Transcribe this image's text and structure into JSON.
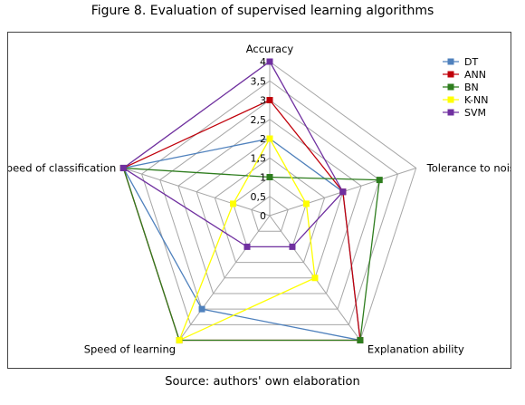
{
  "title": "Figure 8. Evaluation of supervised learning algorithms",
  "source": "Source: authors' own elaboration",
  "chart_data": {
    "type": "radar",
    "axes": [
      "Accuracy",
      "Tolerance to noise",
      "Explanation ability",
      "Speed of learning",
      "Speed of classification"
    ],
    "tick_labels": [
      "0",
      "0,5",
      "1",
      "1,5",
      "2",
      "2,5",
      "3",
      "3,5",
      "4"
    ],
    "range": [
      0,
      4
    ],
    "grid": true,
    "legend_position": "top-right",
    "series": [
      {
        "name": "DT",
        "color": "#4F81BD",
        "values": [
          2,
          2,
          4,
          3,
          4
        ]
      },
      {
        "name": "ANN",
        "color": "#C0000A",
        "values": [
          3,
          2,
          4,
          4,
          4
        ]
      },
      {
        "name": "BN",
        "color": "#2E7D1E",
        "values": [
          1,
          3,
          4,
          4,
          4
        ]
      },
      {
        "name": "K-NN",
        "color": "#FFFF00",
        "values": [
          2,
          1,
          2,
          4,
          1
        ]
      },
      {
        "name": "SVM",
        "color": "#7030A0",
        "values": [
          4,
          2,
          1,
          1,
          4
        ]
      }
    ]
  }
}
